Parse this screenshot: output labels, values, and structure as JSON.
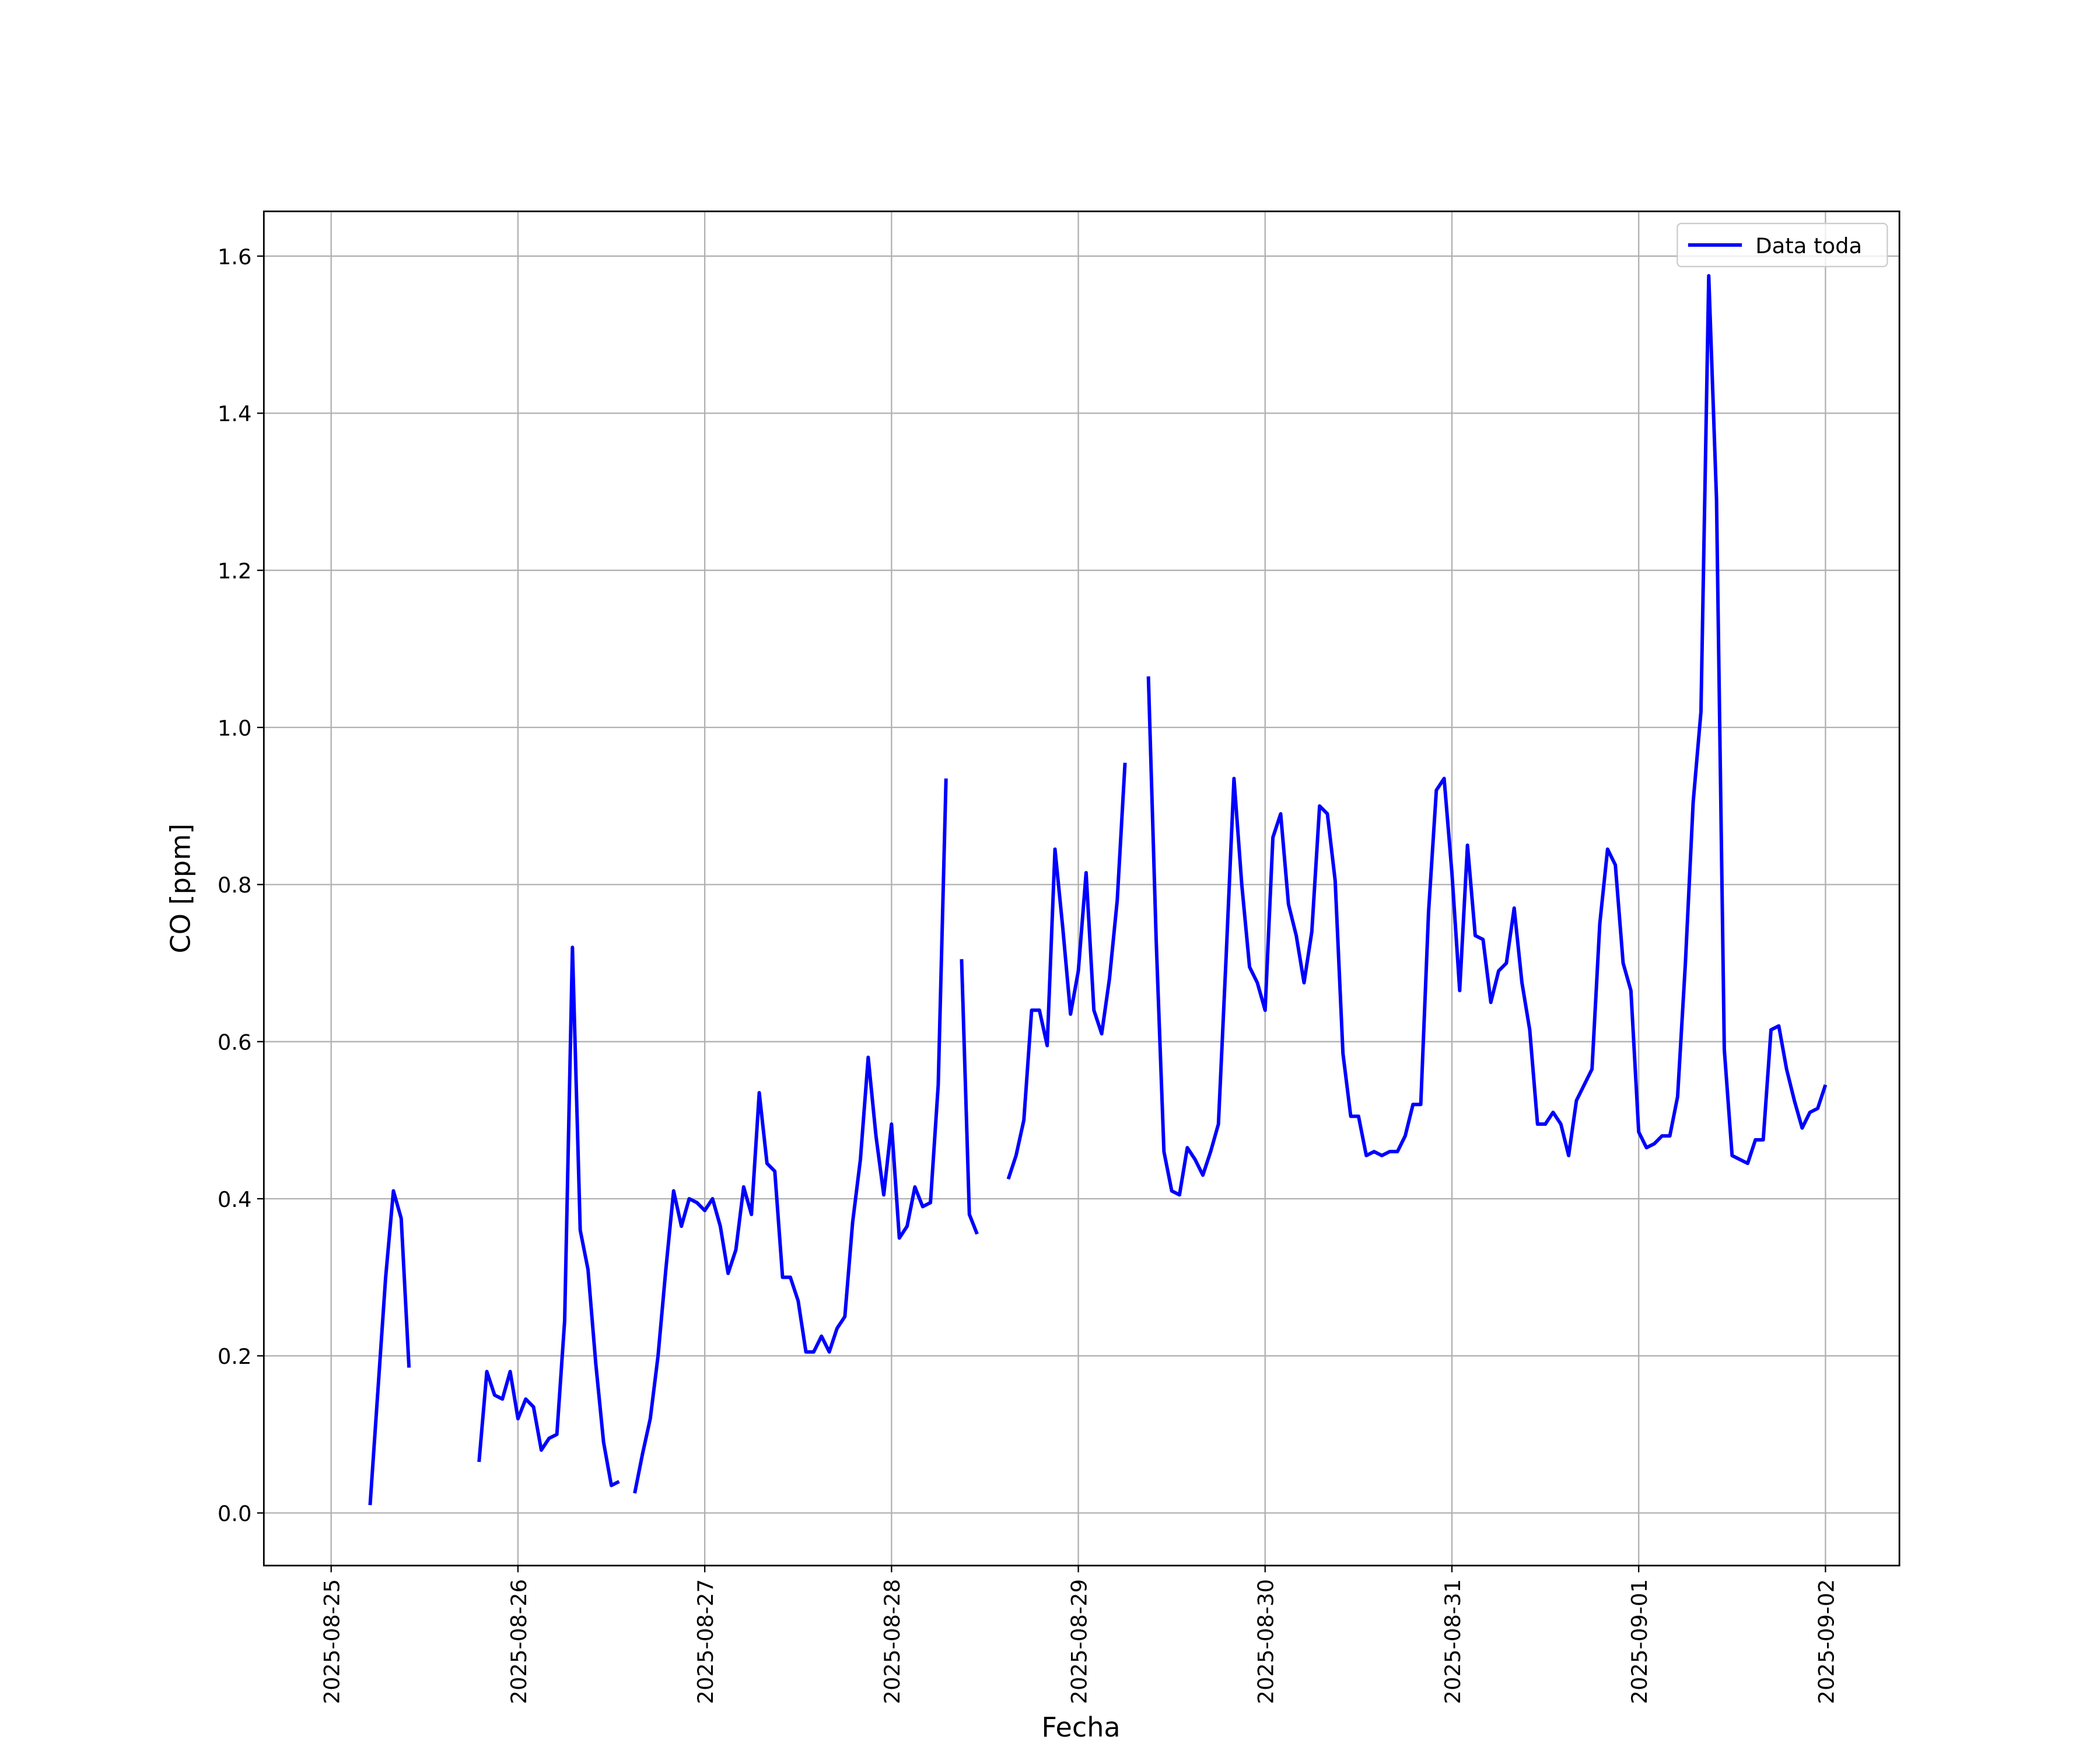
{
  "chart_data": {
    "type": "line",
    "xlabel": "Fecha",
    "ylabel": "CO [ppm]",
    "x": [
      "2025-08-25 05:00",
      "2025-08-25 06:00",
      "2025-08-25 07:00",
      "2025-08-25 08:00",
      "2025-08-25 09:00",
      "2025-08-25 10:00",
      "2025-08-25 11:00",
      "2025-08-25 19:00",
      "2025-08-25 20:00",
      "2025-08-25 21:00",
      "2025-08-25 22:00",
      "2025-08-25 23:00",
      "2025-08-26 00:00",
      "2025-08-26 01:00",
      "2025-08-26 02:00",
      "2025-08-26 03:00",
      "2025-08-26 04:00",
      "2025-08-26 05:00",
      "2025-08-26 06:00",
      "2025-08-26 07:00",
      "2025-08-26 08:00",
      "2025-08-26 09:00",
      "2025-08-26 10:00",
      "2025-08-26 11:00",
      "2025-08-26 12:00",
      "2025-08-26 13:00",
      "2025-08-26 14:00",
      "2025-08-26 15:00",
      "2025-08-26 16:00",
      "2025-08-26 17:00",
      "2025-08-26 18:00",
      "2025-08-26 19:00",
      "2025-08-26 20:00",
      "2025-08-26 21:00",
      "2025-08-26 22:00",
      "2025-08-26 23:00",
      "2025-08-27 00:00",
      "2025-08-27 01:00",
      "2025-08-27 02:00",
      "2025-08-27 03:00",
      "2025-08-27 04:00",
      "2025-08-27 05:00",
      "2025-08-27 06:00",
      "2025-08-27 07:00",
      "2025-08-27 08:00",
      "2025-08-27 09:00",
      "2025-08-27 10:00",
      "2025-08-27 11:00",
      "2025-08-27 12:00",
      "2025-08-27 13:00",
      "2025-08-27 14:00",
      "2025-08-27 15:00",
      "2025-08-27 16:00",
      "2025-08-27 17:00",
      "2025-08-27 18:00",
      "2025-08-27 19:00",
      "2025-08-27 20:00",
      "2025-08-27 21:00",
      "2025-08-27 22:00",
      "2025-08-27 23:00",
      "2025-08-28 00:00",
      "2025-08-28 01:00",
      "2025-08-28 02:00",
      "2025-08-28 03:00",
      "2025-08-28 04:00",
      "2025-08-28 05:00",
      "2025-08-28 06:00",
      "2025-08-28 07:00",
      "2025-08-28 08:00",
      "2025-08-28 09:00",
      "2025-08-28 10:00",
      "2025-08-28 11:00",
      "2025-08-28 12:00",
      "2025-08-28 15:00",
      "2025-08-28 16:00",
      "2025-08-28 17:00",
      "2025-08-28 18:00",
      "2025-08-28 19:00",
      "2025-08-28 20:00",
      "2025-08-28 21:00",
      "2025-08-28 22:00",
      "2025-08-28 23:00",
      "2025-08-29 00:00",
      "2025-08-29 01:00",
      "2025-08-29 02:00",
      "2025-08-29 03:00",
      "2025-08-29 04:00",
      "2025-08-29 05:00",
      "2025-08-29 06:00",
      "2025-08-29 07:00",
      "2025-08-29 09:00",
      "2025-08-29 10:00",
      "2025-08-29 11:00",
      "2025-08-29 12:00",
      "2025-08-29 13:00",
      "2025-08-29 14:00",
      "2025-08-29 15:00",
      "2025-08-29 16:00",
      "2025-08-29 17:00",
      "2025-08-29 18:00",
      "2025-08-29 19:00",
      "2025-08-29 20:00",
      "2025-08-29 21:00",
      "2025-08-29 22:00",
      "2025-08-29 23:00",
      "2025-08-30 00:00",
      "2025-08-30 01:00",
      "2025-08-30 02:00",
      "2025-08-30 03:00",
      "2025-08-30 04:00",
      "2025-08-30 05:00",
      "2025-08-30 06:00",
      "2025-08-30 07:00",
      "2025-08-30 08:00",
      "2025-08-30 09:00",
      "2025-08-30 10:00",
      "2025-08-30 11:00",
      "2025-08-30 12:00",
      "2025-08-30 13:00",
      "2025-08-30 14:00",
      "2025-08-30 15:00",
      "2025-08-30 16:00",
      "2025-08-30 17:00",
      "2025-08-30 18:00",
      "2025-08-30 19:00",
      "2025-08-30 20:00",
      "2025-08-30 21:00",
      "2025-08-30 22:00",
      "2025-08-30 23:00",
      "2025-08-31 00:00",
      "2025-08-31 01:00",
      "2025-08-31 02:00",
      "2025-08-31 03:00",
      "2025-08-31 04:00",
      "2025-08-31 05:00",
      "2025-08-31 06:00",
      "2025-08-31 07:00",
      "2025-08-31 08:00",
      "2025-08-31 09:00",
      "2025-08-31 10:00",
      "2025-08-31 11:00",
      "2025-08-31 12:00",
      "2025-08-31 13:00",
      "2025-08-31 14:00",
      "2025-08-31 15:00",
      "2025-08-31 16:00",
      "2025-08-31 17:00",
      "2025-08-31 18:00",
      "2025-08-31 19:00",
      "2025-08-31 20:00",
      "2025-08-31 21:00",
      "2025-08-31 22:00",
      "2025-08-31 23:00",
      "2025-09-01 00:00",
      "2025-09-01 01:00",
      "2025-09-01 02:00",
      "2025-09-01 03:00",
      "2025-09-01 04:00",
      "2025-09-01 05:00",
      "2025-09-01 06:00",
      "2025-09-01 07:00",
      "2025-09-01 08:00",
      "2025-09-01 09:00",
      "2025-09-01 10:00",
      "2025-09-01 11:00",
      "2025-09-01 12:00",
      "2025-09-01 13:00",
      "2025-09-01 14:00",
      "2025-09-01 15:00",
      "2025-09-01 16:00",
      "2025-09-01 17:00",
      "2025-09-01 18:00",
      "2025-09-01 19:00",
      "2025-09-01 20:00",
      "2025-09-01 21:00",
      "2025-09-01 22:00",
      "2025-09-01 23:00",
      "2025-09-02 00:00"
    ],
    "series": [
      {
        "name": "Data toda",
        "color": "#0000ff",
        "values": [
          0.01,
          0.155,
          0.3,
          0.41,
          0.375,
          0.185,
          null,
          0.065,
          0.18,
          0.15,
          0.145,
          0.18,
          0.12,
          0.145,
          0.135,
          0.08,
          0.095,
          0.1,
          0.245,
          0.72,
          0.36,
          0.31,
          0.19,
          0.09,
          0.035,
          0.04,
          null,
          0.025,
          0.075,
          0.12,
          0.2,
          0.31,
          0.41,
          0.365,
          0.4,
          0.395,
          0.385,
          0.4,
          0.365,
          0.305,
          0.335,
          0.415,
          0.38,
          0.535,
          0.445,
          0.435,
          0.3,
          0.3,
          0.27,
          0.205,
          0.205,
          0.225,
          0.205,
          0.235,
          0.25,
          0.37,
          0.45,
          0.58,
          0.48,
          0.405,
          0.495,
          0.35,
          0.365,
          0.415,
          0.39,
          0.395,
          0.545,
          0.935,
          null,
          0.705,
          0.38,
          0.355,
          null,
          0.425,
          0.455,
          0.5,
          0.64,
          0.64,
          0.595,
          0.845,
          0.745,
          0.635,
          0.69,
          0.815,
          0.64,
          0.61,
          0.68,
          0.78,
          0.955,
          null,
          1.065,
          0.73,
          0.46,
          0.41,
          0.405,
          0.465,
          0.45,
          0.43,
          0.46,
          0.495,
          0.71,
          0.935,
          0.8,
          0.695,
          0.675,
          0.64,
          0.86,
          0.89,
          0.775,
          0.735,
          0.675,
          0.74,
          0.9,
          0.89,
          0.805,
          0.585,
          0.505,
          0.505,
          0.455,
          0.46,
          0.455,
          0.46,
          0.46,
          0.48,
          0.52,
          0.52,
          0.765,
          0.92,
          0.935,
          0.815,
          0.665,
          0.85,
          0.735,
          0.73,
          0.65,
          0.69,
          0.7,
          0.77,
          0.675,
          0.615,
          0.495,
          0.495,
          0.51,
          0.495,
          0.455,
          0.525,
          0.545,
          0.565,
          0.75,
          0.845,
          0.825,
          0.7,
          0.665,
          0.485,
          0.465,
          0.47,
          0.48,
          0.48,
          0.53,
          0.7,
          0.905,
          1.02,
          1.575,
          1.29,
          0.59,
          0.455,
          0.45,
          0.445,
          0.475,
          0.475,
          0.615,
          0.62,
          0.565,
          0.525,
          0.49,
          0.51,
          0.515,
          0.545
        ]
      }
    ],
    "xlim": [
      "2025-08-24 15:21",
      "2025-09-02 09:30"
    ],
    "xticks": [
      "2025-08-25",
      "2025-08-26",
      "2025-08-27",
      "2025-08-28",
      "2025-08-29",
      "2025-08-30",
      "2025-08-31",
      "2025-09-01",
      "2025-09-02"
    ],
    "ylim": [
      -0.067,
      1.657
    ],
    "yticks": [
      {
        "value": 0,
        "label": "0.0"
      },
      0.2,
      0.4,
      0.6,
      0.8,
      {
        "value": 1,
        "label": "1.0"
      },
      1.2,
      1.4,
      1.6
    ],
    "grid": true,
    "legend": "upper right"
  }
}
